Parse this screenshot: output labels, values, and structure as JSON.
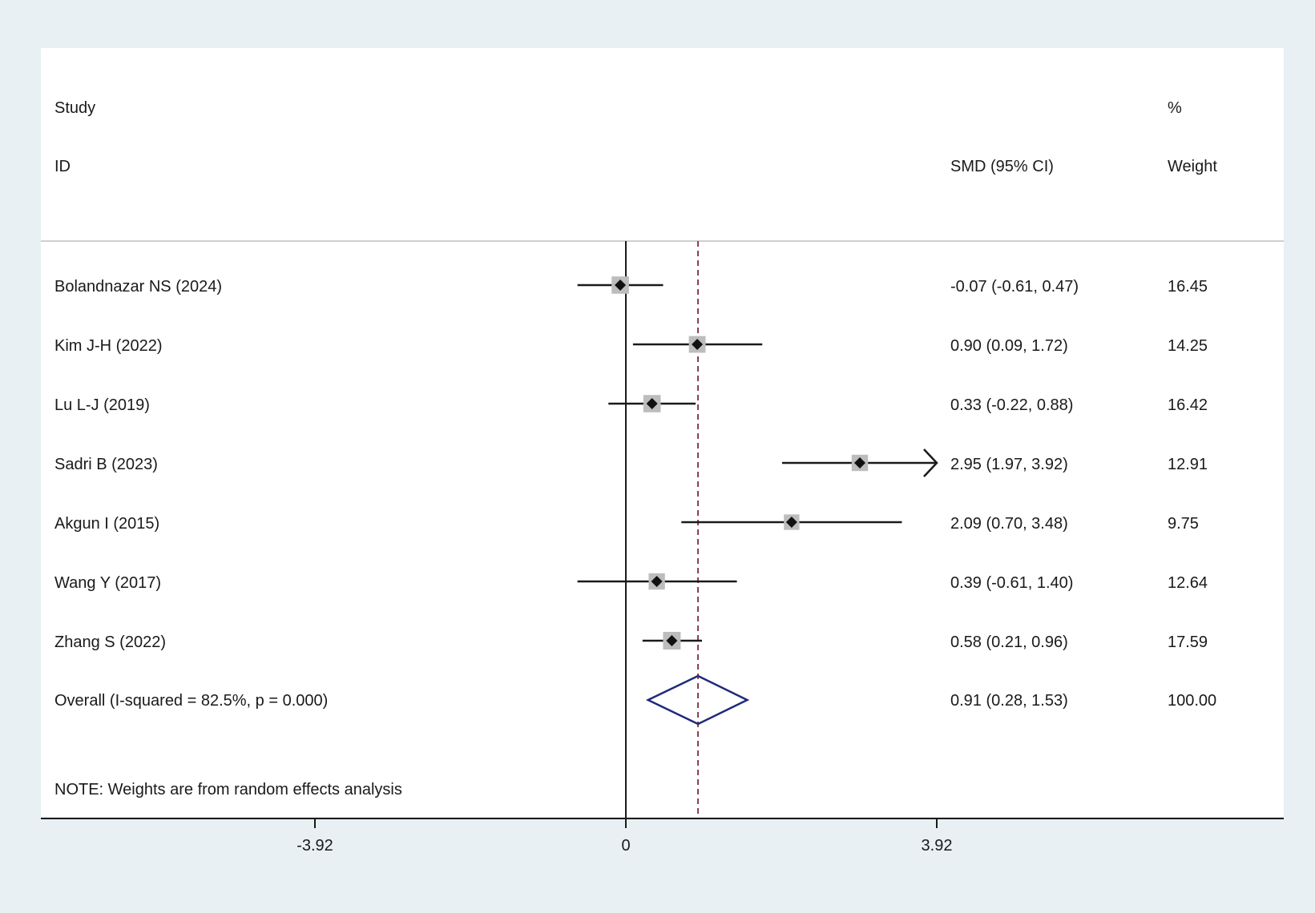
{
  "chart_data": {
    "type": "forest",
    "header": {
      "study_line1": "Study",
      "study_line2": "ID",
      "effect_label": "SMD (95% CI)",
      "weight_line1": "%",
      "weight_line2": "Weight"
    },
    "studies": [
      {
        "label": "Bolandnazar NS (2024)",
        "smd": -0.07,
        "lo": -0.61,
        "hi": 0.47,
        "ci_text": "-0.07 (-0.61, 0.47)",
        "weight": "16.45"
      },
      {
        "label": "Kim J-H (2022)",
        "smd": 0.9,
        "lo": 0.09,
        "hi": 1.72,
        "ci_text": "0.90 (0.09, 1.72)",
        "weight": "14.25"
      },
      {
        "label": "Lu L-J (2019)",
        "smd": 0.33,
        "lo": -0.22,
        "hi": 0.88,
        "ci_text": "0.33 (-0.22, 0.88)",
        "weight": "16.42"
      },
      {
        "label": "Sadri B (2023)",
        "smd": 2.95,
        "lo": 1.97,
        "hi": 3.92,
        "ci_text": "2.95 (1.97, 3.92)",
        "weight": "12.91",
        "arrow_right": true
      },
      {
        "label": "Akgun I (2015)",
        "smd": 2.09,
        "lo": 0.7,
        "hi": 3.48,
        "ci_text": "2.09 (0.70, 3.48)",
        "weight": "9.75"
      },
      {
        "label": "Wang Y (2017)",
        "smd": 0.39,
        "lo": -0.61,
        "hi": 1.4,
        "ci_text": "0.39 (-0.61, 1.40)",
        "weight": "12.64"
      },
      {
        "label": "Zhang S (2022)",
        "smd": 0.58,
        "lo": 0.21,
        "hi": 0.96,
        "ci_text": "0.58 (0.21, 0.96)",
        "weight": "17.59"
      }
    ],
    "overall": {
      "label": "Overall  (I-squared = 82.5%, p = 0.000)",
      "smd": 0.91,
      "lo": 0.28,
      "hi": 1.53,
      "ci_text": "0.91 (0.28, 1.53)",
      "weight": "100.00"
    },
    "note": "NOTE: Weights are from random effects analysis",
    "x_ticks": [
      {
        "value": -3.92,
        "label": "-3.92"
      },
      {
        "value": 0,
        "label": "0"
      },
      {
        "value": 3.92,
        "label": "3.92"
      }
    ],
    "x_range": [
      -3.92,
      3.92
    ],
    "colors": {
      "background": "#e8f0f3",
      "panel": "#ffffff",
      "line": "#1a1a1a",
      "square": "#bdbdbd",
      "diamond": "#1f2a7a",
      "overall_line": "#8b3a4a"
    }
  }
}
